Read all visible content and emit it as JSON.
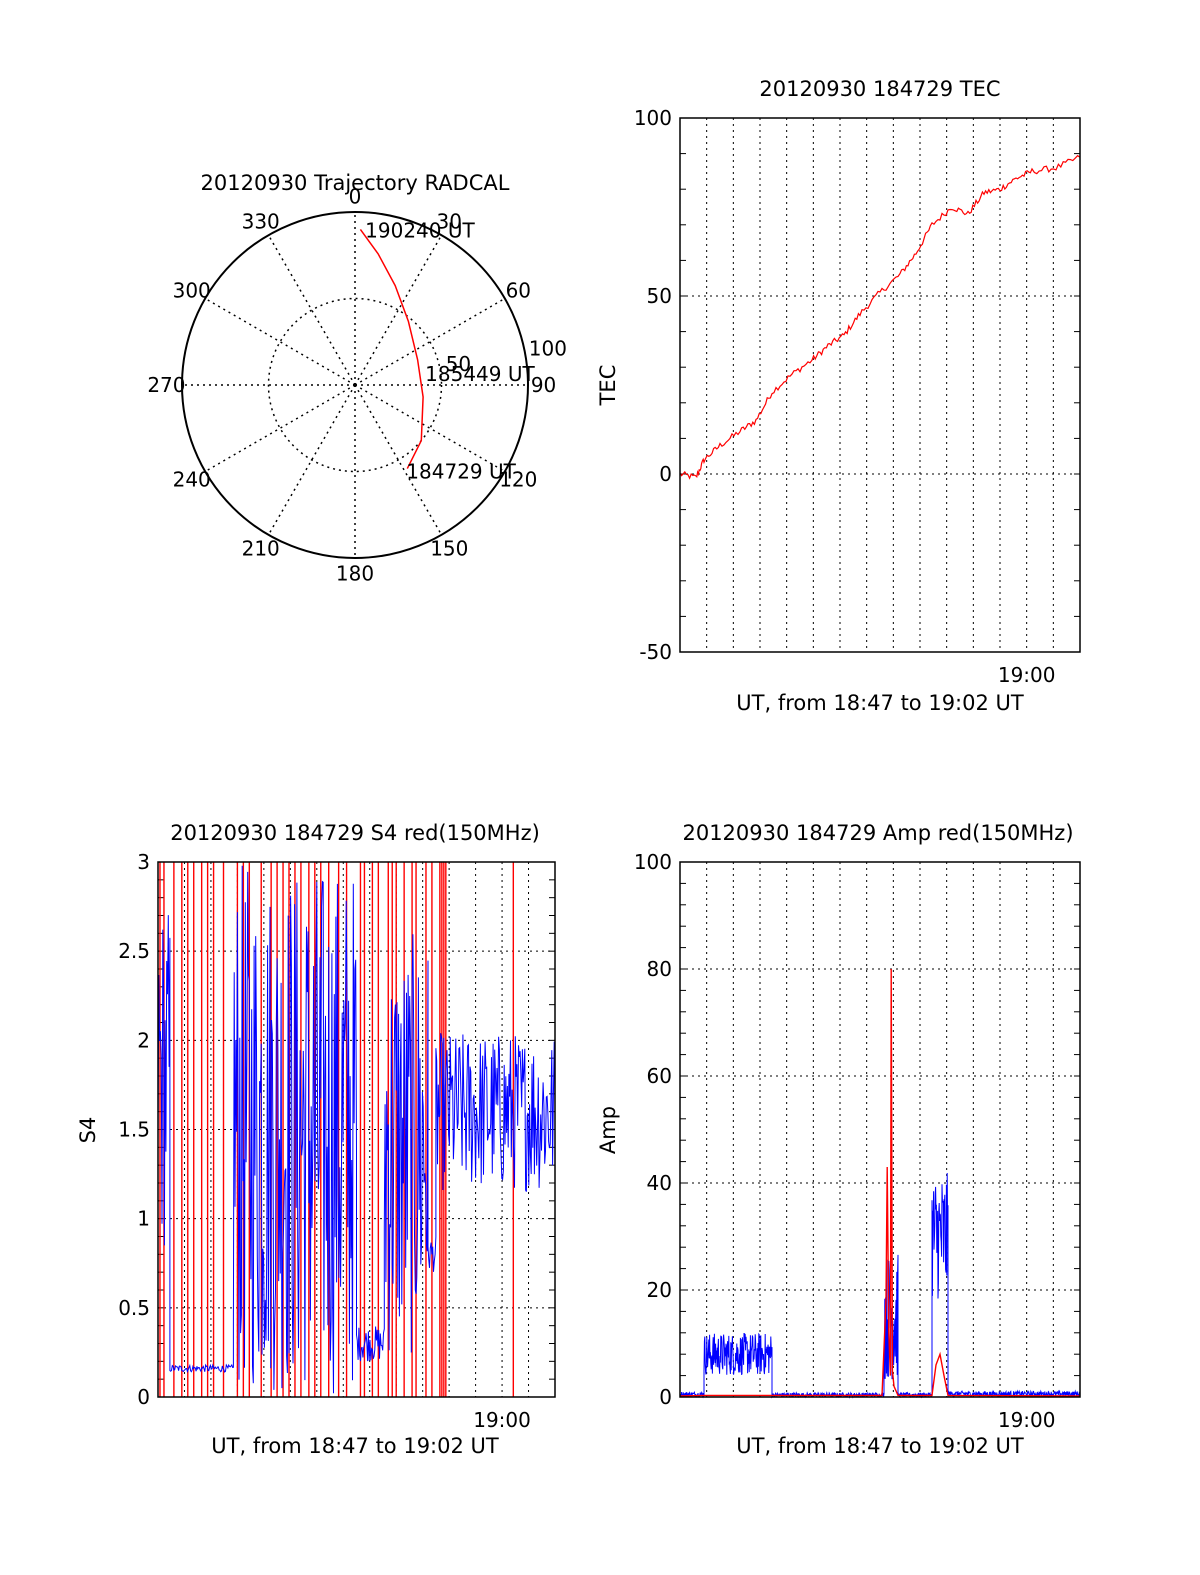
{
  "chart_data": [
    {
      "id": "trajectory",
      "type": "polar",
      "title": "20120930 Trajectory RADCAL",
      "azimuth_ticks": [
        0,
        30,
        60,
        90,
        120,
        150,
        180,
        210,
        240,
        270,
        300,
        330
      ],
      "radial_ticks": [
        50,
        100
      ],
      "rmax": 100,
      "colors": {
        "track": "#ff0000",
        "axes": "#000000"
      },
      "track": [
        {
          "az": 2,
          "r": 90
        },
        {
          "az": 10,
          "r": 77
        },
        {
          "az": 22,
          "r": 62
        },
        {
          "az": 40,
          "r": 48
        },
        {
          "az": 68,
          "r": 39
        },
        {
          "az": 100,
          "r": 40
        },
        {
          "az": 130,
          "r": 50
        },
        {
          "az": 148,
          "r": 57
        }
      ],
      "time_labels": [
        {
          "text": "190240 UT",
          "az": 3,
          "r": 90
        },
        {
          "text": "185449 UT",
          "az": 80,
          "r": 40
        },
        {
          "text": "184729 UT",
          "az": 150,
          "r": 57
        }
      ]
    },
    {
      "id": "tec",
      "type": "line",
      "title": "20120930 184729 TEC",
      "ylabel": "TEC",
      "xlabel": "UT, from 18:47 to 19:02 UT",
      "ylim": [
        -50,
        100
      ],
      "yticks": [
        "-50",
        "0",
        "50",
        "100"
      ],
      "xlim": [
        0,
        1000
      ],
      "xtick_label": "19:00",
      "colors": {
        "line": "#ff0000"
      },
      "series": [
        {
          "x": [
            0,
            40,
            60,
            100,
            150,
            190,
            230,
            280,
            330,
            370,
            410,
            450,
            500,
            550,
            590,
            630,
            680,
            720,
            760,
            800,
            840,
            880,
            940,
            1000
          ],
          "y": [
            0,
            -1,
            4,
            8,
            12,
            15,
            23,
            28,
            32,
            36,
            39,
            45,
            51,
            56,
            62,
            70,
            75,
            73,
            79,
            80,
            83,
            85,
            86,
            89
          ]
        }
      ]
    },
    {
      "id": "s4",
      "type": "line",
      "title": "20120930 184729 S4 red(150MHz)",
      "ylabel": "S4",
      "xlabel": "UT, from 18:47 to 19:02 UT",
      "ylim": [
        0,
        3
      ],
      "yticks": [
        "0",
        "0.5",
        "1",
        "1.5",
        "2",
        "2.5",
        "3"
      ],
      "xlim": [
        0,
        1000
      ],
      "xtick_label": "19:00",
      "colors": {
        "red": "#ff0000",
        "blue": "#0000ff"
      },
      "series": [
        {
          "name": "blue",
          "segments": [
            {
              "x0": 0,
              "x1": 30,
              "level": 1.8,
              "noise": 1.0
            },
            {
              "x0": 30,
              "x1": 190,
              "level": 0.16,
              "noise": 0.02
            },
            {
              "x0": 190,
              "x1": 500,
              "level": 1.5,
              "noise": 1.5
            },
            {
              "x0": 500,
              "x1": 570,
              "level": 0.3,
              "noise": 0.1
            },
            {
              "x0": 570,
              "x1": 680,
              "level": 1.4,
              "noise": 1.2
            },
            {
              "x0": 680,
              "x1": 700,
              "level": 0.8,
              "noise": 0.1
            },
            {
              "x0": 700,
              "x1": 1000,
              "level": 1.6,
              "noise": 0.45
            }
          ]
        },
        {
          "name": "red",
          "spikes_x": [
            5,
            15,
            40,
            60,
            75,
            90,
            110,
            125,
            140,
            165,
            200,
            215,
            230,
            260,
            285,
            300,
            315,
            330,
            345,
            360,
            380,
            395,
            410,
            430,
            455,
            475,
            510,
            520,
            540,
            555,
            580,
            590,
            600,
            620,
            640,
            650,
            675,
            690,
            710,
            715,
            720,
            725,
            895
          ]
        }
      ]
    },
    {
      "id": "amp",
      "type": "line",
      "title": "20120930 184729 Amp red(150MHz)",
      "ylabel": "Amp",
      "xlabel": "UT, from 18:47 to 19:02 UT",
      "ylim": [
        0,
        100
      ],
      "yticks": [
        "0",
        "20",
        "40",
        "60",
        "80",
        "100"
      ],
      "xlim": [
        0,
        1000
      ],
      "xtick_label": "19:00",
      "colors": {
        "red": "#ff0000",
        "blue": "#0000ff"
      },
      "series": [
        {
          "name": "blue",
          "segments": [
            {
              "x0": 0,
              "x1": 60,
              "level": 0.5,
              "noise": 0.5
            },
            {
              "x0": 60,
              "x1": 230,
              "level": 8,
              "noise": 4
            },
            {
              "x0": 230,
              "x1": 510,
              "level": 0.4,
              "noise": 0.4
            },
            {
              "x0": 510,
              "x1": 545,
              "level": 15,
              "noise": 12
            },
            {
              "x0": 545,
              "x1": 630,
              "level": 0.4,
              "noise": 0.4
            },
            {
              "x0": 630,
              "x1": 670,
              "level": 30,
              "noise": 12
            },
            {
              "x0": 670,
              "x1": 1000,
              "level": 0.6,
              "noise": 0.5
            }
          ]
        },
        {
          "name": "red",
          "points": [
            [
              0,
              0.2
            ],
            [
              60,
              0.3
            ],
            [
              230,
              0.3
            ],
            [
              505,
              0.3
            ],
            [
              515,
              18
            ],
            [
              518,
              43
            ],
            [
              522,
              12
            ],
            [
              526,
              4
            ],
            [
              528,
              80
            ],
            [
              531,
              5
            ],
            [
              535,
              2
            ],
            [
              545,
              0.3
            ],
            [
              630,
              0.3
            ],
            [
              640,
              6
            ],
            [
              650,
              8
            ],
            [
              660,
              4
            ],
            [
              670,
              0.3
            ],
            [
              1000,
              0.2
            ]
          ]
        }
      ]
    }
  ]
}
